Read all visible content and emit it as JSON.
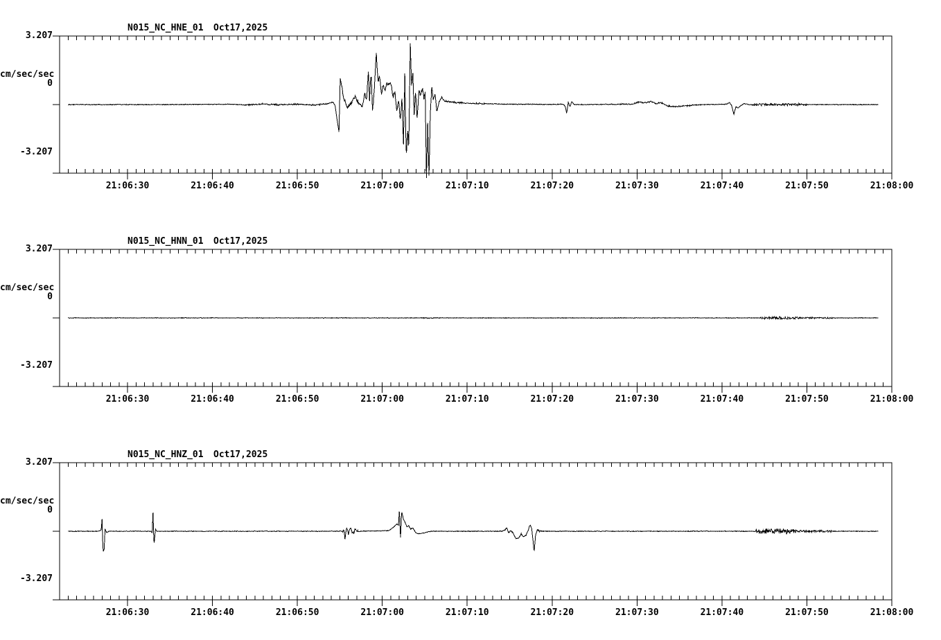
{
  "page": {
    "background": "#ffffff",
    "trace_color": "#000000",
    "station_network": "N015_NC",
    "record_date": "Oct17,2025"
  },
  "y_axis": {
    "top_label": "3.207",
    "zero_label": "0",
    "bottom_label": "-3.207",
    "unit_label": "cm/sec/sec",
    "range": [
      -3.207,
      3.207
    ]
  },
  "time_axis": {
    "start_second_after_2106": 22,
    "end_second_after_2106": 120,
    "minor_tick_interval_s": 1,
    "major_tick_interval_s": 10,
    "tick_seconds": [
      30,
      40,
      50,
      60,
      70,
      80,
      90,
      100,
      110,
      120
    ],
    "tick_labels": [
      "21:06:30",
      "21:06:40",
      "21:06:50",
      "21:07:00",
      "21:07:10",
      "21:07:20",
      "21:07:30",
      "21:07:40",
      "21:07:50",
      "21:08:00"
    ]
  },
  "chart_data": [
    {
      "type": "line",
      "title": "N015_NC_HNE_01",
      "date": "Oct17,2025",
      "channel": "HNE",
      "ylabel": "cm/sec/sec",
      "ylim": [
        -3.207,
        3.207
      ],
      "x_window": [
        "21:06:22",
        "21:08:00"
      ],
      "trace_t_range": [
        23.0,
        118.4
      ],
      "keypoints_t_amp": [
        [
          23,
          0
        ],
        [
          34,
          0
        ],
        [
          38,
          0.01
        ],
        [
          42,
          0.02
        ],
        [
          44,
          -0.02
        ],
        [
          46,
          0.03
        ],
        [
          48,
          -0.01
        ],
        [
          50,
          0.02
        ],
        [
          52,
          -0.02
        ],
        [
          53.5,
          0.03
        ],
        [
          54.2,
          0.12
        ],
        [
          54.45,
          -0.06
        ],
        [
          54.75,
          -0.9
        ],
        [
          54.9,
          -1.26
        ],
        [
          55.05,
          1.23
        ],
        [
          55.25,
          0.78
        ],
        [
          55.55,
          0.18
        ],
        [
          55.95,
          -0.12
        ],
        [
          56.35,
          0.06
        ],
        [
          56.8,
          0.36
        ],
        [
          57.25,
          0.08
        ],
        [
          57.65,
          -0.06
        ],
        [
          57.95,
          0.5
        ],
        [
          58.15,
          0.14
        ],
        [
          58.35,
          1.6
        ],
        [
          58.5,
          0.22
        ],
        [
          58.68,
          1.52
        ],
        [
          58.85,
          -0.3
        ],
        [
          59.05,
          0.6
        ],
        [
          59.3,
          2.45
        ],
        [
          59.5,
          1.05
        ],
        [
          59.68,
          1.45
        ],
        [
          59.88,
          0.42
        ],
        [
          60.1,
          0.92
        ],
        [
          60.32,
          0.6
        ],
        [
          60.55,
          1.05
        ],
        [
          60.8,
          0.9
        ],
        [
          61.05,
          1.0
        ],
        [
          61.25,
          0.38
        ],
        [
          61.5,
          0.56
        ],
        [
          61.72,
          -0.32
        ],
        [
          61.92,
          0.3
        ],
        [
          62.12,
          -0.72
        ],
        [
          62.32,
          0.36
        ],
        [
          62.5,
          -1.92
        ],
        [
          62.65,
          1.45
        ],
        [
          62.82,
          -2.55
        ],
        [
          63.0,
          -1.15
        ],
        [
          63.12,
          -2.05
        ],
        [
          63.3,
          2.79
        ],
        [
          63.45,
          0.9
        ],
        [
          63.6,
          1.5
        ],
        [
          63.75,
          -0.45
        ],
        [
          63.92,
          0.7
        ],
        [
          64.1,
          -0.6
        ],
        [
          64.3,
          0.62
        ],
        [
          64.5,
          0.4
        ],
        [
          64.72,
          0.82
        ],
        [
          64.9,
          0.3
        ],
        [
          65.05,
          0.55
        ],
        [
          65.2,
          -3.45
        ],
        [
          65.35,
          -0.85
        ],
        [
          65.5,
          -3.3
        ],
        [
          65.65,
          -0.5
        ],
        [
          65.82,
          0.88
        ],
        [
          66.0,
          0.2
        ],
        [
          66.2,
          0.5
        ],
        [
          66.42,
          -0.25
        ],
        [
          66.7,
          0.12
        ],
        [
          67.0,
          0.34
        ],
        [
          67.35,
          0.16
        ],
        [
          67.8,
          0.14
        ],
        [
          68.6,
          0.1
        ],
        [
          70,
          0.06
        ],
        [
          72,
          0.04
        ],
        [
          75,
          0.02
        ],
        [
          80,
          0.01
        ],
        [
          81.3,
          0.02
        ],
        [
          81.55,
          -0.08
        ],
        [
          81.72,
          -0.42
        ],
        [
          81.9,
          0.12
        ],
        [
          82.1,
          -0.1
        ],
        [
          82.3,
          0.14
        ],
        [
          82.6,
          0
        ],
        [
          89.5,
          0.02
        ],
        [
          90.3,
          0.13
        ],
        [
          91.0,
          0.08
        ],
        [
          91.6,
          0.15
        ],
        [
          92.2,
          0.04
        ],
        [
          92.8,
          0.1
        ],
        [
          93.6,
          -0.06
        ],
        [
          94.6,
          -0.1
        ],
        [
          95.6,
          -0.06
        ],
        [
          96.6,
          -0.03
        ],
        [
          98,
          0
        ],
        [
          100.6,
          0.02
        ],
        [
          100.9,
          0.1
        ],
        [
          101.15,
          -0.06
        ],
        [
          101.4,
          -0.44
        ],
        [
          101.65,
          -0.1
        ],
        [
          101.9,
          -0.16
        ],
        [
          102.2,
          -0.05
        ],
        [
          102.6,
          0.04
        ],
        [
          103.2,
          0
        ],
        [
          118.4,
          0
        ]
      ],
      "noise_global": 0.016,
      "noise_bands": [
        [
          44,
          53.5,
          0.022
        ],
        [
          55.2,
          66.5,
          0.09
        ],
        [
          66.5,
          72,
          0.03
        ],
        [
          88,
          97,
          0.025
        ],
        [
          103.5,
          110,
          0.045
        ]
      ]
    },
    {
      "type": "line",
      "title": "N015_NC_HNN_01",
      "date": "Oct17,2025",
      "channel": "HNN",
      "ylabel": "cm/sec/sec",
      "ylim": [
        -3.207,
        3.207
      ],
      "x_window": [
        "21:06:22",
        "21:08:00"
      ],
      "trace_t_range": [
        23.0,
        118.4
      ],
      "keypoints_t_amp": [
        [
          23,
          0
        ],
        [
          118.4,
          0
        ]
      ],
      "noise_global": 0.012,
      "noise_bands": [
        [
          64.5,
          67,
          0.015
        ],
        [
          104.5,
          109,
          0.055
        ],
        [
          109,
          113,
          0.03
        ]
      ]
    },
    {
      "type": "line",
      "title": "N015_NC_HNZ_01",
      "date": "Oct17,2025",
      "channel": "HNZ",
      "ylabel": "cm/sec/sec",
      "ylim": [
        -3.207,
        3.207
      ],
      "x_window": [
        "21:06:22",
        "21:08:00"
      ],
      "trace_t_range": [
        23.0,
        118.4
      ],
      "keypoints_t_amp": [
        [
          23,
          0
        ],
        [
          26.7,
          0
        ],
        [
          26.9,
          0.08
        ],
        [
          27.0,
          0.55
        ],
        [
          27.08,
          -0.6
        ],
        [
          27.15,
          -0.95
        ],
        [
          27.25,
          -0.85
        ],
        [
          27.35,
          0.1
        ],
        [
          27.55,
          -0.06
        ],
        [
          27.8,
          0
        ],
        [
          32.7,
          0
        ],
        [
          32.9,
          -0.06
        ],
        [
          33.0,
          0.88
        ],
        [
          33.12,
          -0.68
        ],
        [
          33.28,
          0.1
        ],
        [
          33.45,
          0
        ],
        [
          55.3,
          0
        ],
        [
          55.45,
          0.1
        ],
        [
          55.6,
          -0.3
        ],
        [
          55.8,
          0.15
        ],
        [
          56.0,
          -0.12
        ],
        [
          56.2,
          0.17
        ],
        [
          56.5,
          -0.1
        ],
        [
          56.8,
          0.06
        ],
        [
          57.2,
          0
        ],
        [
          60.8,
          0.03
        ],
        [
          61.3,
          0.18
        ],
        [
          61.7,
          0.34
        ],
        [
          61.9,
          0.28
        ],
        [
          62.02,
          1.04
        ],
        [
          62.14,
          -0.37
        ],
        [
          62.28,
          0.94
        ],
        [
          62.5,
          0.55
        ],
        [
          62.7,
          0.4
        ],
        [
          62.9,
          0.2
        ],
        [
          63.1,
          0.27
        ],
        [
          63.35,
          0.1
        ],
        [
          63.6,
          0.16
        ],
        [
          63.9,
          -0.04
        ],
        [
          64.2,
          -0.12
        ],
        [
          64.6,
          -0.1
        ],
        [
          65.1,
          -0.06
        ],
        [
          65.8,
          0
        ],
        [
          74.1,
          0
        ],
        [
          74.45,
          0.06
        ],
        [
          74.65,
          0.17
        ],
        [
          74.85,
          -0.08
        ],
        [
          75.15,
          0.04
        ],
        [
          75.45,
          -0.12
        ],
        [
          75.75,
          -0.35
        ],
        [
          76.05,
          -0.3
        ],
        [
          76.35,
          -0.13
        ],
        [
          76.65,
          -0.23
        ],
        [
          76.95,
          -0.17
        ],
        [
          77.2,
          0.07
        ],
        [
          77.42,
          0.3
        ],
        [
          77.6,
          0.1
        ],
        [
          77.78,
          -0.55
        ],
        [
          77.88,
          -1.0
        ],
        [
          78.05,
          -0.2
        ],
        [
          78.25,
          0.07
        ],
        [
          78.5,
          0
        ],
        [
          118.4,
          0
        ]
      ],
      "noise_global": 0.014,
      "noise_bands": [
        [
          55.3,
          57.2,
          0.07
        ],
        [
          74.2,
          79,
          0.025
        ],
        [
          104,
          108.7,
          0.12
        ],
        [
          108.7,
          113,
          0.05
        ]
      ]
    }
  ]
}
